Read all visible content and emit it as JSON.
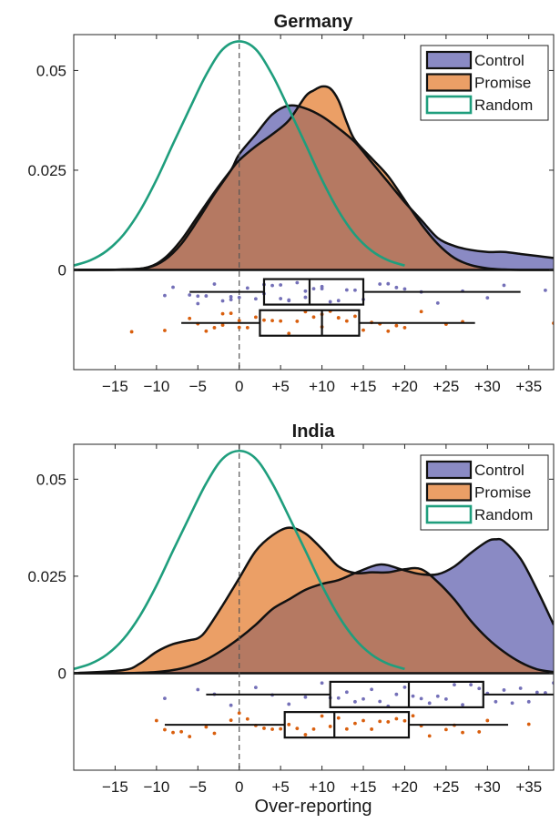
{
  "figure": {
    "xlabel": "Over-reporting"
  },
  "colors": {
    "control_fill": "#8a8ac4",
    "promise_fill": "#eb9f66",
    "overlap_fill": "#b57962",
    "random_line": "#1f9e7d",
    "control_dots": "#7470b8",
    "promise_dots": "#d95f0e",
    "axis": "#262626"
  },
  "chart_data": [
    {
      "type": "area",
      "title": "Germany",
      "xlabel": "",
      "xticks": [
        -15,
        -10,
        -5,
        0,
        5,
        10,
        15,
        20,
        25,
        30,
        35
      ],
      "xtick_labels": [
        "−15",
        "−10",
        "−5",
        "0",
        "+5",
        "+10",
        "+15",
        "+20",
        "+25",
        "+30",
        "+35"
      ],
      "xlim": [
        -20,
        38
      ],
      "yticks": [
        0,
        0.025,
        0.05
      ],
      "ytick_labels": [
        "0",
        "0.025",
        "0.05"
      ],
      "ylim": [
        -0.025,
        0.059
      ],
      "reference_line_x": 0,
      "legend": {
        "placement": "top-right",
        "entries": [
          "Control",
          "Promise",
          "Random"
        ]
      },
      "series": [
        {
          "name": "Control",
          "x": [
            -20,
            -14,
            -11,
            -9,
            -7,
            -5,
            -3,
            -1,
            0,
            2,
            4,
            6,
            8,
            10,
            12,
            14,
            16,
            18,
            20,
            22,
            24,
            26,
            28,
            30,
            32,
            34,
            36,
            38
          ],
          "y": [
            0,
            0.0001,
            0.0006,
            0.0025,
            0.0065,
            0.0125,
            0.019,
            0.025,
            0.029,
            0.034,
            0.039,
            0.0412,
            0.0405,
            0.0385,
            0.0355,
            0.032,
            0.027,
            0.022,
            0.017,
            0.0125,
            0.008,
            0.006,
            0.005,
            0.0045,
            0.0045,
            0.004,
            0.0035,
            0.003
          ]
        },
        {
          "name": "Promise",
          "x": [
            -20,
            -14,
            -11,
            -9,
            -7,
            -5,
            -3,
            -1,
            0,
            2,
            4,
            6,
            8,
            9,
            10,
            11,
            12,
            13,
            14,
            16,
            18,
            20,
            22,
            24,
            26,
            28,
            30,
            32,
            34,
            36,
            38
          ],
          "y": [
            0,
            0.0001,
            0.0007,
            0.003,
            0.0075,
            0.0135,
            0.0195,
            0.025,
            0.0275,
            0.031,
            0.034,
            0.0375,
            0.0435,
            0.045,
            0.046,
            0.0455,
            0.0425,
            0.037,
            0.0325,
            0.028,
            0.0235,
            0.0175,
            0.0115,
            0.0065,
            0.003,
            0.0012,
            0.0004,
            0.0001,
            0,
            0,
            0
          ]
        },
        {
          "name": "Random",
          "x": [
            -20,
            -18,
            -16,
            -14,
            -12,
            -10,
            -8,
            -6,
            -4,
            -2,
            0,
            2,
            4,
            6,
            8,
            10,
            12,
            14,
            16,
            18,
            20
          ],
          "y": [
            0.0011,
            0.0024,
            0.0048,
            0.0088,
            0.0148,
            0.0226,
            0.0316,
            0.0404,
            0.0489,
            0.0553,
            0.0573,
            0.0553,
            0.0489,
            0.0404,
            0.0316,
            0.0226,
            0.0148,
            0.0088,
            0.0048,
            0.0024,
            0.0011
          ]
        }
      ],
      "boxplots": [
        {
          "name": "Control",
          "whisker_low": -6,
          "q1": 3,
          "median": 8.5,
          "q3": 15,
          "whisker_high": 34,
          "points": [
            -9,
            -8,
            -6,
            -5,
            -5,
            -4,
            -3,
            -2,
            -1,
            -1,
            0,
            1,
            2,
            3,
            3,
            4,
            5,
            5,
            6,
            6,
            7,
            8,
            8,
            9,
            10,
            10,
            11,
            12,
            13,
            14,
            15,
            17,
            18,
            19,
            20,
            22,
            24,
            27,
            30,
            32,
            37
          ]
        },
        {
          "name": "Promise",
          "whisker_low": -7,
          "q1": 2.5,
          "median": 10,
          "q3": 14.5,
          "whisker_high": 28.5,
          "points": [
            -13,
            -9,
            -6,
            -5,
            -4,
            -3,
            -2,
            -2,
            -1,
            0,
            0,
            1,
            2,
            3,
            4,
            5,
            6,
            7,
            8,
            9,
            10,
            10,
            11,
            12,
            12,
            13,
            14,
            15,
            16,
            17,
            18,
            19,
            20,
            22,
            25,
            27,
            38
          ]
        }
      ]
    },
    {
      "type": "area",
      "title": "India",
      "xlabel": "Over-reporting",
      "xticks": [
        -15,
        -10,
        -5,
        0,
        5,
        10,
        15,
        20,
        25,
        30,
        35
      ],
      "xtick_labels": [
        "−15",
        "−10",
        "−5",
        "0",
        "+5",
        "+10",
        "+15",
        "+20",
        "+25",
        "+30",
        "+35"
      ],
      "xlim": [
        -20,
        38
      ],
      "yticks": [
        0,
        0.025,
        0.05
      ],
      "ytick_labels": [
        "0",
        "0.025",
        "0.05"
      ],
      "ylim": [
        -0.025,
        0.059
      ],
      "reference_line_x": 0,
      "legend": {
        "placement": "top-right",
        "entries": [
          "Control",
          "Promise",
          "Random"
        ]
      },
      "series": [
        {
          "name": "Control",
          "x": [
            -20,
            -14,
            -12,
            -10,
            -8,
            -6,
            -4,
            -2,
            0,
            2,
            4,
            6,
            8,
            10,
            12,
            14,
            16,
            17,
            18,
            20,
            22,
            24,
            26,
            28,
            30,
            31,
            32,
            34,
            36,
            38
          ],
          "y": [
            0,
            0,
            0.0001,
            0.0003,
            0.0008,
            0.0018,
            0.0035,
            0.006,
            0.009,
            0.0125,
            0.0165,
            0.019,
            0.0215,
            0.023,
            0.024,
            0.0258,
            0.0275,
            0.028,
            0.0278,
            0.0265,
            0.0255,
            0.0255,
            0.0275,
            0.031,
            0.034,
            0.0345,
            0.034,
            0.0295,
            0.0215,
            0.0125
          ]
        },
        {
          "name": "Promise",
          "x": [
            -20,
            -14,
            -12,
            -10,
            -8,
            -6,
            -5,
            -4,
            -2,
            0,
            2,
            4,
            6,
            8,
            10,
            12,
            14,
            16,
            18,
            20,
            22,
            24,
            26,
            28,
            30,
            32,
            34,
            36,
            38
          ],
          "y": [
            0,
            0.0008,
            0.0025,
            0.0055,
            0.0075,
            0.0085,
            0.009,
            0.011,
            0.0175,
            0.0245,
            0.0315,
            0.0355,
            0.0375,
            0.036,
            0.032,
            0.0275,
            0.0258,
            0.026,
            0.026,
            0.0268,
            0.0268,
            0.0235,
            0.019,
            0.0135,
            0.009,
            0.0055,
            0.0028,
            0.001,
            0.0003
          ]
        },
        {
          "name": "Random",
          "x": [
            -20,
            -18,
            -16,
            -14,
            -12,
            -10,
            -8,
            -6,
            -4,
            -2,
            0,
            2,
            4,
            6,
            8,
            10,
            12,
            14,
            16,
            18,
            20
          ],
          "y": [
            0.0011,
            0.0024,
            0.0048,
            0.0088,
            0.0148,
            0.0226,
            0.0316,
            0.0404,
            0.0489,
            0.0553,
            0.0573,
            0.0553,
            0.0489,
            0.0404,
            0.0316,
            0.0226,
            0.0148,
            0.0088,
            0.0048,
            0.0024,
            0.0011
          ]
        }
      ],
      "boxplots": [
        {
          "name": "Control",
          "whisker_low": -4,
          "q1": 11,
          "median": 20.5,
          "q3": 29.5,
          "whisker_high": 38,
          "points": [
            -9,
            -5,
            -3,
            -1,
            2,
            4,
            6,
            8,
            10,
            11,
            12,
            13,
            14,
            15,
            16,
            17,
            18,
            19,
            20,
            21,
            22,
            23,
            24,
            25,
            26,
            27,
            28,
            29,
            30,
            31,
            32,
            33,
            34,
            35,
            36,
            37,
            38
          ]
        },
        {
          "name": "Promise",
          "whisker_low": -9,
          "q1": 5.5,
          "median": 11.5,
          "q3": 20.5,
          "whisker_high": 32.5,
          "points": [
            -10,
            -9,
            -8,
            -7,
            -6,
            -4,
            -3,
            -1,
            0,
            1,
            2,
            3,
            4,
            5,
            6,
            7,
            8,
            9,
            10,
            11,
            12,
            13,
            14,
            15,
            16,
            17,
            18,
            19,
            20,
            21,
            22,
            23,
            25,
            26,
            27,
            29,
            30,
            35
          ]
        }
      ]
    }
  ]
}
